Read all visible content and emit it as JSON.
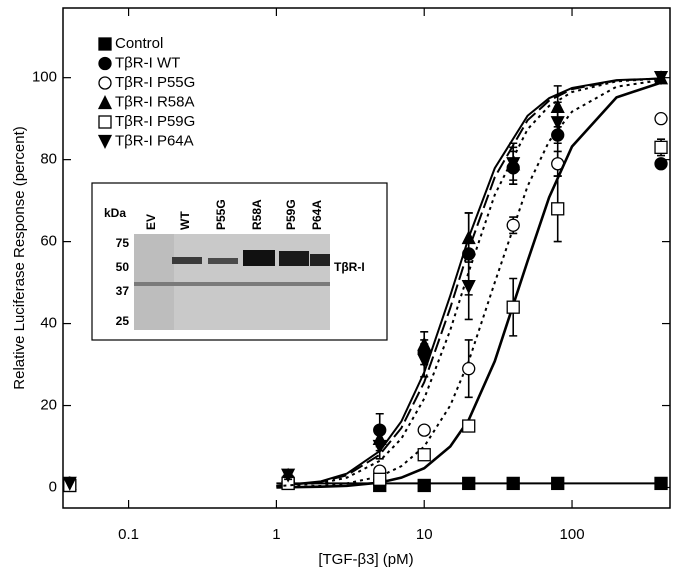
{
  "chart_data": {
    "type": "scatter",
    "x_label": "[TGF-β3] (pM)",
    "y_label": "Relative Luciferase Response (percent)",
    "x_log": true,
    "xlim": [
      0.036,
      460
    ],
    "xticks": [
      0.1,
      1,
      10,
      100
    ],
    "ylim": [
      -5,
      117
    ],
    "yticks": [
      0,
      20,
      40,
      60,
      80,
      100
    ],
    "legend": "upper left",
    "x": [
      0.04,
      1.2,
      5,
      10,
      20,
      40,
      80,
      400
    ],
    "fit_x": [
      1,
      2,
      3,
      5,
      7,
      10,
      15,
      20,
      30,
      50,
      70,
      100,
      200,
      400
    ],
    "series": [
      {
        "name": "Control",
        "color": "#000000",
        "marker": "square",
        "dash": "solid",
        "values": [
          0.5,
          1,
          0.5,
          0.5,
          1,
          1,
          1,
          1
        ],
        "fit": [
          1,
          1,
          1,
          1,
          1,
          1,
          1,
          1,
          1,
          1,
          1,
          1,
          1,
          1
        ]
      },
      {
        "name": "TβR-I WT",
        "color": "#000000",
        "marker": "circle",
        "dash": "dashed",
        "values": [
          1,
          2,
          14,
          33,
          57,
          78,
          86,
          79
        ],
        "errors": [
          1,
          1,
          4,
          3,
          10,
          4,
          6,
          1
        ],
        "fit": [
          0.3,
          1.4,
          3.0,
          8.0,
          14.5,
          25.7,
          43.8,
          58.1,
          75.7,
          89.6,
          94.4,
          97.2,
          99.3,
          99.8
        ]
      },
      {
        "name": "TβR-I P55G",
        "color": "#000000",
        "marker": "circle-open",
        "dash": "dotted",
        "values": [
          1,
          1,
          4,
          14,
          29,
          64,
          79,
          90
        ],
        "errors": [
          0,
          0,
          1,
          1,
          7,
          2,
          3,
          1
        ],
        "fit": [
          0.1,
          0.4,
          1.0,
          2.7,
          5.2,
          10.0,
          20.0,
          30.8,
          50.0,
          73.5,
          84.5,
          91.7,
          97.8,
          99.4
        ]
      },
      {
        "name": "TβR-I R58A",
        "color": "#000000",
        "marker": "triangle-up",
        "dash": "solid",
        "values": [
          1,
          3,
          12,
          35,
          61,
          79,
          93,
          100
        ],
        "errors": [
          0,
          1,
          3,
          3,
          6,
          4,
          5,
          0
        ],
        "fit": [
          0.4,
          1.5,
          3.4,
          8.9,
          16.1,
          28.1,
          46.8,
          61.0,
          77.9,
          90.7,
          95.0,
          97.5,
          99.4,
          99.8
        ]
      },
      {
        "name": "TβR-I P59G",
        "color": "#000000",
        "marker": "square-open",
        "dash": "solid",
        "values": [
          0.5,
          1,
          2,
          8,
          15,
          44,
          68,
          83
        ],
        "errors": [
          0,
          0,
          1,
          1,
          1,
          7,
          8,
          2
        ],
        "fit": [
          0.0,
          0.2,
          0.4,
          1.2,
          2.4,
          4.7,
          10.0,
          16.5,
          30.8,
          55.2,
          70.8,
          83.2,
          95.2,
          98.8
        ]
      },
      {
        "name": "TβR-I P64A",
        "color": "#000000",
        "marker": "triangle-down",
        "dash": "dotted",
        "values": [
          1,
          3,
          10,
          31,
          49,
          79,
          89,
          100
        ],
        "errors": [
          0,
          1,
          3,
          4,
          8,
          5,
          5,
          0
        ],
        "fit": [
          0.3,
          1.1,
          2.4,
          6.5,
          11.9,
          21.7,
          38.4,
          52.6,
          71.4,
          87.4,
          93.1,
          96.5,
          99.1,
          99.8
        ]
      }
    ]
  },
  "inset": {
    "size_label": "kDa",
    "lanes": [
      "EV",
      "WT",
      "P55G",
      "R58A",
      "P59G",
      "P64A"
    ],
    "markers": [
      "75",
      "50",
      "37",
      "25"
    ],
    "band_label": "TβR-I"
  }
}
